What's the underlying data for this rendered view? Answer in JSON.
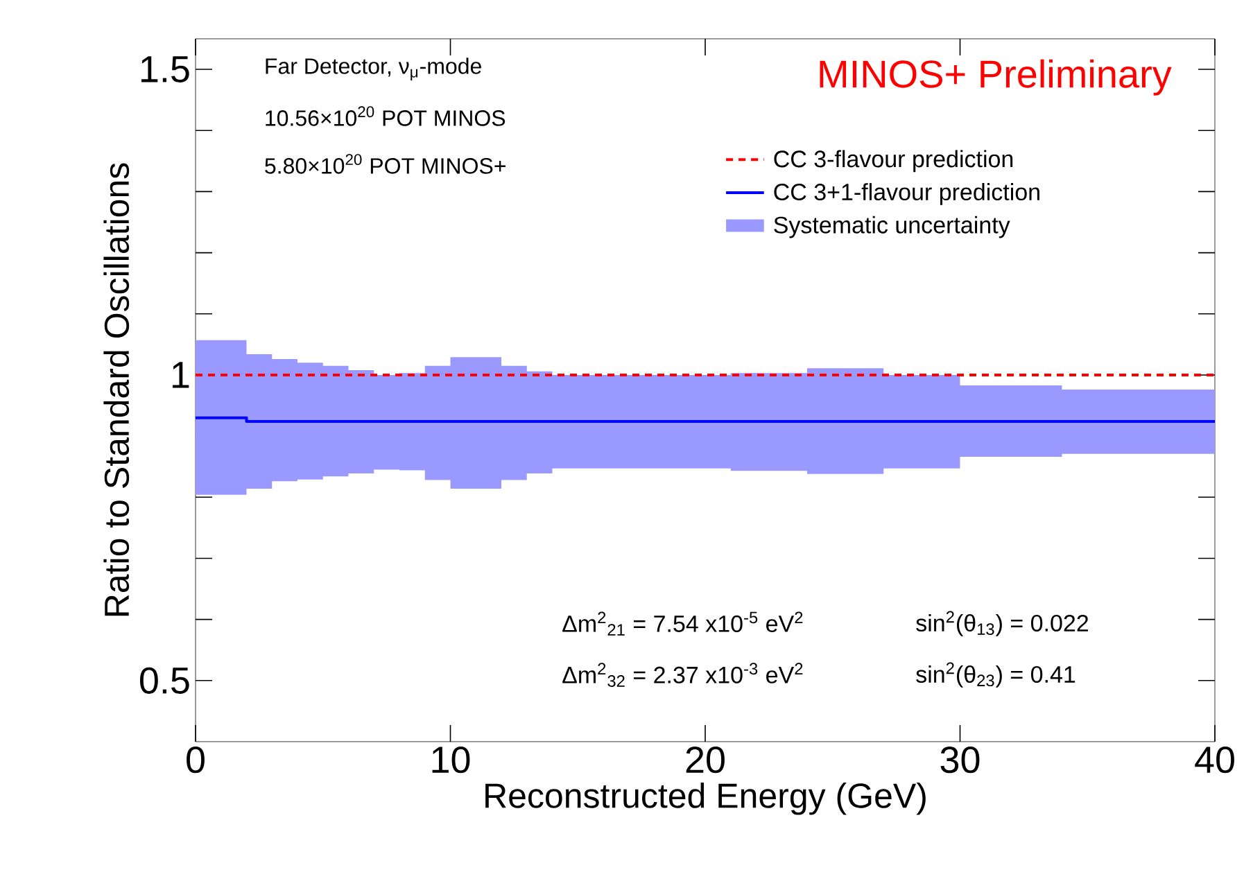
{
  "chart_data": {
    "type": "step",
    "xlabel": "Reconstructed Energy (GeV)",
    "ylabel": "Ratio to Standard Oscillations",
    "xlim": [
      0,
      40
    ],
    "ylim": [
      0.4,
      1.55
    ],
    "xticks": [
      0,
      10,
      20,
      30,
      40
    ],
    "yticks": [
      {
        "value": 0.5,
        "label": "0.5"
      },
      {
        "value": 0.6,
        "label": null
      },
      {
        "value": 0.7,
        "label": null
      },
      {
        "value": 0.8,
        "label": null
      },
      {
        "value": 0.9,
        "label": null
      },
      {
        "value": 1,
        "label": "1"
      },
      {
        "value": 1.1,
        "label": null
      },
      {
        "value": 1.2,
        "label": null
      },
      {
        "value": 1.3,
        "label": null
      },
      {
        "value": 1.4,
        "label": null
      },
      {
        "value": 1.5,
        "label": "1.5"
      }
    ],
    "legend": "top right",
    "series": [
      {
        "name": "CC 3-flavour prediction",
        "color": "#ff0000",
        "line_style": "dashed",
        "x": [
          0,
          40
        ],
        "values": [
          1,
          1
        ]
      },
      {
        "name": "CC 3+1-flavour prediction",
        "color": "#0000ff",
        "line_style": "solid",
        "x": [
          0,
          2,
          3,
          4,
          5,
          6,
          7,
          8,
          9,
          10,
          12,
          13,
          14,
          21,
          24,
          27,
          30,
          34,
          40
        ],
        "values": [
          0.93,
          0.924,
          0.924,
          0.924,
          0.924,
          0.924,
          0.924,
          0.924,
          0.924,
          0.924,
          0.924,
          0.924,
          0.924,
          0.924,
          0.924,
          0.924,
          0.924,
          0.924,
          0.924
        ],
        "upper": [
          1.057,
          1.034,
          1.026,
          1.02,
          1.015,
          1.008,
          1.0,
          1.003,
          1.015,
          1.029,
          1.015,
          1.006,
          1.0,
          1.003,
          1.011,
          1.0,
          0.983,
          0.976,
          0.976
        ],
        "lower": [
          0.804,
          0.814,
          0.826,
          0.829,
          0.834,
          0.839,
          0.845,
          0.844,
          0.828,
          0.814,
          0.828,
          0.839,
          0.847,
          0.843,
          0.838,
          0.847,
          0.866,
          0.871,
          0.871
        ]
      }
    ],
    "annotations": [
      "MINOS+ Preliminary",
      "Far Detector,  ν$_{μ}$-mode",
      "10.56×10$^{20}$ POT MINOS",
      "5.80×10$^{20}$ POT MINOS+",
      "Δm$^{2}$$_{21}$ = 7.54 x10$^{-5}$ eV$^{2}$",
      "sin$^{2}$(θ$_{13}$) = 0.022",
      "Δm$^{2}$$_{32}$ = 2.37 x10$^{-3}$ eV$^{2}$",
      "sin$^{2}$(θ$_{23}$) = 0.41",
      "Systematic uncertainty"
    ]
  }
}
